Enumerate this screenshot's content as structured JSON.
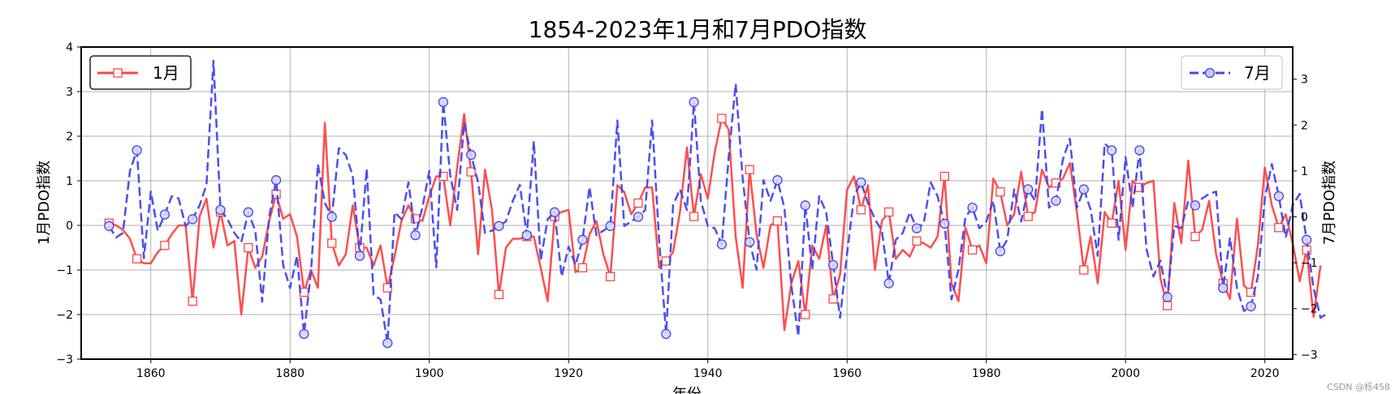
{
  "chart_data": {
    "type": "line",
    "title": "1854-2023年1月和7月PDO指数",
    "xlabel": "年份",
    "ylabel_left": "1月PDO指数",
    "ylabel_right": "7月PDO指数",
    "xlim": [
      1850,
      2024
    ],
    "ylim_left": [
      -3,
      4
    ],
    "ylim_right": [
      -3.1,
      3.7
    ],
    "x_ticks": [
      1860,
      1880,
      1900,
      1920,
      1940,
      1960,
      1980,
      2000,
      2020
    ],
    "y_ticks_left": [
      -3,
      -2,
      -1,
      0,
      1,
      2,
      3,
      4
    ],
    "y_ticks_right": [
      -3,
      -2,
      -1,
      0,
      1,
      2,
      3
    ],
    "grid": true,
    "series": [
      {
        "name": "1月",
        "axis": "left",
        "color": "#ff4444",
        "line_style": "solid",
        "marker": "square",
        "marker_every": 4,
        "x_start": 1854,
        "values": [
          0.05,
          0.0,
          -0.1,
          -0.3,
          -0.75,
          -0.85,
          -0.85,
          -0.6,
          -0.45,
          -0.2,
          0.0,
          0.0,
          -1.7,
          0.2,
          0.6,
          -0.5,
          0.3,
          -0.45,
          -0.35,
          -2.0,
          -0.5,
          -0.95,
          -0.7,
          0.1,
          0.7,
          0.15,
          0.25,
          -0.25,
          -1.5,
          -1.0,
          -1.4,
          2.3,
          -0.4,
          -0.9,
          -0.65,
          0.45,
          -0.5,
          -0.5,
          -0.9,
          -0.45,
          -1.4,
          -0.7,
          0.1,
          0.45,
          0.15,
          0.1,
          0.65,
          1.1,
          1.1,
          0.0,
          1.3,
          2.5,
          1.2,
          -0.65,
          1.25,
          0.35,
          -1.55,
          -0.5,
          -0.3,
          -0.3,
          -0.25,
          -0.25,
          -0.95,
          -1.7,
          0.2,
          0.3,
          0.35,
          -1.05,
          -0.95,
          -0.2,
          0.1,
          -0.65,
          -1.15,
          0.9,
          0.75,
          0.25,
          0.5,
          0.85,
          0.85,
          -0.95,
          -0.8,
          -0.6,
          0.3,
          1.75,
          0.2,
          1.15,
          0.6,
          1.65,
          2.4,
          2.15,
          -0.25,
          -1.4,
          1.25,
          -0.2,
          -0.95,
          0.0,
          0.1,
          -2.35,
          -1.3,
          -0.8,
          -2.0,
          -0.45,
          -0.75,
          0.0,
          -1.65,
          -1.1,
          0.8,
          1.1,
          0.35,
          0.9,
          -1.0,
          0.1,
          0.3,
          -0.75,
          -0.55,
          -0.7,
          -0.35,
          -0.4,
          -0.5,
          -0.25,
          1.1,
          -1.3,
          -1.7,
          -0.05,
          -0.55,
          -0.45,
          -0.85,
          1.05,
          0.75,
          0.0,
          0.25,
          1.2,
          0.2,
          0.3,
          1.25,
          0.85,
          0.95,
          1.05,
          1.4,
          0.3,
          -1.0,
          -0.25,
          -1.3,
          0.3,
          0.05,
          1.0,
          -0.55,
          1.0,
          0.85,
          0.95,
          1.0,
          -1.2,
          -1.8,
          0.5,
          -0.4,
          1.45,
          -0.25,
          -0.1,
          0.55,
          -0.65,
          -1.3,
          -1.65,
          0.15,
          -1.35,
          -1.5,
          -0.45,
          1.3,
          0.45,
          -0.05,
          0.25,
          -0.4,
          -1.25,
          -0.55,
          -2.05,
          -0.9
        ]
      },
      {
        "name": "7月",
        "axis": "right",
        "color": "#4444ee",
        "line_style": "dashed",
        "marker": "circle",
        "marker_every": 4,
        "x_start": 1854,
        "values": [
          -0.2,
          -0.45,
          -0.35,
          1.0,
          1.45,
          -0.9,
          0.55,
          -0.3,
          0.05,
          0.45,
          0.4,
          -0.2,
          -0.05,
          0.25,
          0.7,
          3.4,
          0.15,
          -0.05,
          -0.35,
          -0.55,
          0.1,
          -0.3,
          -1.85,
          0.0,
          0.8,
          -1.05,
          -1.55,
          -0.85,
          -2.55,
          -1.2,
          1.15,
          0.3,
          0.0,
          1.5,
          1.35,
          0.9,
          -0.85,
          1.05,
          -1.7,
          -1.8,
          -2.75,
          0.1,
          -0.05,
          0.75,
          -0.4,
          0.2,
          1.0,
          -1.1,
          2.5,
          0.9,
          0.15,
          2.05,
          1.35,
          0.75,
          -0.35,
          -0.3,
          -0.2,
          -0.1,
          0.35,
          0.7,
          -0.4,
          1.65,
          -0.95,
          -0.05,
          0.1,
          -1.3,
          -0.65,
          -1.05,
          -0.5,
          0.65,
          -0.4,
          -0.3,
          -0.2,
          2.1,
          -0.2,
          -0.1,
          0.0,
          0.15,
          2.1,
          -0.5,
          -2.55,
          0.25,
          0.6,
          0.15,
          2.5,
          0.35,
          -0.2,
          -0.25,
          -0.6,
          1.3,
          2.9,
          0.85,
          -0.55,
          -1.15,
          0.8,
          0.35,
          0.8,
          0.2,
          -1.5,
          -2.6,
          0.25,
          -1.15,
          0.45,
          0.1,
          -1.05,
          -2.2,
          -0.8,
          0.45,
          0.75,
          0.3,
          -0.05,
          -0.3,
          -1.45,
          -0.5,
          -0.35,
          0.1,
          -0.25,
          -0.15,
          0.75,
          0.45,
          -0.15,
          -1.8,
          -1.15,
          0.0,
          0.2,
          -0.25,
          -0.1,
          0.35,
          -0.75,
          -0.5,
          0.6,
          -0.1,
          0.6,
          0.35,
          2.35,
          0.2,
          0.35,
          1.25,
          1.7,
          0.2,
          0.6,
          0.15,
          -0.85,
          1.6,
          1.45,
          -0.5,
          1.3,
          0.2,
          1.45,
          -0.7,
          -1.3,
          -0.95,
          -1.75,
          -0.2,
          -0.25,
          0.35,
          0.25,
          0.4,
          0.5,
          0.55,
          -1.55,
          -0.45,
          -1.55,
          -2.05,
          -1.95,
          -1.3,
          0.4,
          1.15,
          0.45,
          -0.45,
          0.25,
          0.5,
          -0.5,
          -1.55,
          -2.2,
          -2.1
        ]
      }
    ],
    "legend": [
      {
        "label": "1月",
        "placement": "top-left"
      },
      {
        "label": "7月",
        "placement": "top-right"
      }
    ]
  },
  "credit": "CSDN @栎458"
}
